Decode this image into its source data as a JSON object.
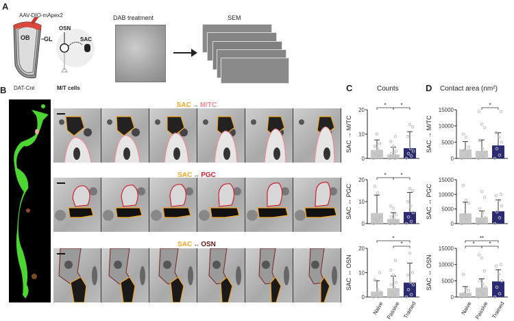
{
  "panels": {
    "a": "A",
    "b": "B",
    "c": "C",
    "d": "D"
  },
  "panel_a": {
    "virus_label": "AAV-DIO-mApex2",
    "ob_label": "OB",
    "gl_label": "GL",
    "mouse_line": "DAT-Cre",
    "osn_label": "OSN",
    "sac_label": "SAC",
    "mt_label": "M/T cells",
    "dab_title": "DAB treatment",
    "sem_title": "SEM"
  },
  "panel_b": {
    "rows": [
      {
        "pre": "SAC",
        "arrow": "→",
        "post": "M/TC",
        "post_color": "#f08a96",
        "outline_color": "#f08a96"
      },
      {
        "pre": "SAC",
        "arrow": "↔",
        "post": "PGC",
        "post_color": "#d0202e",
        "outline_color": "#d0202e"
      },
      {
        "pre": "SAC",
        "arrow": "↔",
        "post": "OSN",
        "post_color": "#6b1a1a",
        "outline_color": "#7a1f1f"
      }
    ],
    "sac_color": "#f5a623"
  },
  "colors": {
    "naive": "#c8c8c8",
    "passive": "#c8c8c8",
    "trained": "#2b2a73",
    "point": "#bdbdbd"
  },
  "chart_data": [
    {
      "type": "bar",
      "title": "Counts",
      "ylabel": "SAC → M/TC",
      "ylim": [
        0,
        20
      ],
      "yticks": [
        "0",
        "10",
        "20"
      ],
      "categories": [
        "Naive",
        "Passive",
        "Trained"
      ],
      "values": [
        3.5,
        1.6,
        4.2
      ],
      "error_upper": [
        7.6,
        4.6,
        11.0
      ],
      "points": [
        [
          0,
          1,
          2,
          3,
          4,
          5,
          6,
          10
        ],
        [
          0,
          0,
          1,
          1,
          2,
          2,
          3,
          5,
          7,
          9
        ],
        [
          0,
          1,
          2,
          3,
          4,
          9,
          13,
          14
        ]
      ],
      "significance": [
        {
          "pair": [
            0,
            1
          ],
          "label": "*"
        },
        {
          "pair": [
            1,
            2
          ],
          "label": "*"
        }
      ]
    },
    {
      "type": "bar",
      "ylabel": "SAC ↔ PGC",
      "ylim": [
        0,
        20
      ],
      "yticks": [
        "0",
        "10",
        "20"
      ],
      "categories": [
        "Naive",
        "Passive",
        "Trained"
      ],
      "values": [
        4.8,
        2.1,
        5.3
      ],
      "error_upper": [
        13.0,
        5.0,
        14.2
      ],
      "points": [
        [
          0,
          1,
          2,
          3,
          14,
          17
        ],
        [
          0,
          0,
          1,
          1,
          2,
          3,
          4,
          7,
          8
        ],
        [
          0,
          1,
          3,
          5,
          8,
          10,
          15,
          16
        ]
      ],
      "significance": [
        {
          "pair": [
            0,
            1
          ],
          "label": "*"
        },
        {
          "pair": [
            1,
            2
          ],
          "label": "*"
        }
      ]
    },
    {
      "type": "bar",
      "ylabel": "SAC ↔ OSN",
      "ylim": [
        0,
        20
      ],
      "yticks": [
        "0",
        "10",
        "20"
      ],
      "categories": [
        "Naive",
        "Passive",
        "Trained"
      ],
      "values": [
        2.2,
        3.6,
        5.9
      ],
      "error_upper": [
        6.7,
        8.6,
        13.9
      ],
      "points": [
        [
          0,
          0,
          1,
          2,
          3,
          7,
          10
        ],
        [
          0,
          1,
          2,
          3,
          4,
          5,
          6,
          9,
          11,
          15
        ],
        [
          0,
          1,
          3,
          5,
          6,
          9,
          10,
          18
        ]
      ],
      "significance": [
        {
          "pair": [
            0,
            2
          ],
          "label": "*"
        },
        {
          "pair": [
            1,
            2
          ],
          "label": "*"
        }
      ]
    },
    {
      "type": "bar",
      "title": "Contact area (nm²)",
      "ylabel": "SAC → M/TC",
      "ylim": [
        0,
        15000
      ],
      "yticks": [
        "0",
        "5000",
        "10000",
        "15000"
      ],
      "categories": [
        "Naive",
        "Passive",
        "Trained"
      ],
      "values": [
        2800,
        2300,
        4000
      ],
      "error_upper": [
        5200,
        5700,
        7900
      ],
      "points": [
        [
          0,
          1000,
          2500,
          3500,
          6500,
          7500
        ],
        [
          0,
          500,
          1000,
          2000,
          3000,
          5500,
          9500,
          10500,
          14500
        ],
        [
          0,
          1000,
          3000,
          5000,
          6500,
          8000,
          14500
        ]
      ],
      "significance": [
        {
          "pair": [
            1,
            2
          ],
          "label": "*"
        }
      ]
    },
    {
      "type": "bar",
      "ylabel": "SAC ↔ PGC",
      "ylim": [
        0,
        15000
      ],
      "yticks": [
        "0",
        "5000",
        "10000",
        "15000"
      ],
      "categories": [
        "Naive",
        "Passive",
        "Trained"
      ],
      "values": [
        3500,
        2100,
        4200
      ],
      "error_upper": [
        7300,
        4300,
        8100
      ],
      "points": [
        [
          0,
          1500,
          3000,
          7000,
          8000,
          13000
        ],
        [
          0,
          500,
          1000,
          2000,
          3500,
          5000,
          9000,
          11000
        ],
        [
          0,
          2000,
          4000,
          6000,
          8000,
          9500,
          10000
        ]
      ],
      "significance": []
    },
    {
      "type": "bar",
      "ylabel": "SAC ↔ OSN",
      "ylim": [
        0,
        15000
      ],
      "yticks": [
        "0",
        "5000",
        "10000",
        "15000"
      ],
      "categories": [
        "Naive",
        "Passive",
        "Trained"
      ],
      "values": [
        1300,
        2900,
        4800
      ],
      "error_upper": [
        3200,
        5600,
        8400
      ],
      "points": [
        [
          0,
          500,
          1000,
          2000,
          2500,
          7000
        ],
        [
          0,
          1000,
          2000,
          3000,
          4000,
          5000,
          8000,
          12000,
          13000
        ],
        [
          0,
          1000,
          3000,
          5000,
          7000,
          9500,
          10000
        ]
      ],
      "significance": [
        {
          "pair": [
            0,
            2
          ],
          "label": "**"
        },
        {
          "pair": [
            0,
            1
          ],
          "label": "*"
        },
        {
          "pair": [
            1,
            2
          ],
          "label": "*"
        }
      ]
    }
  ]
}
